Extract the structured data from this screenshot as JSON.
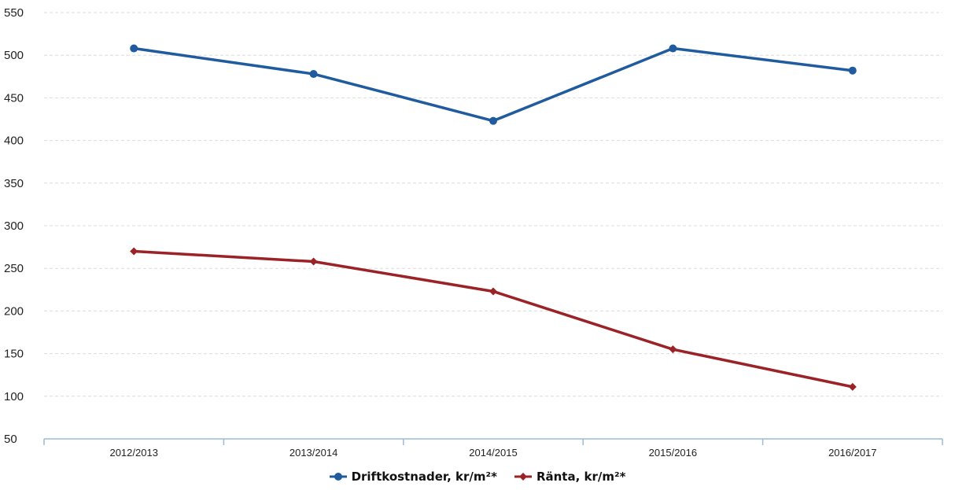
{
  "chart_data": {
    "type": "line",
    "categories": [
      "2012/2013",
      "2013/2014",
      "2014/2015",
      "2015/2016",
      "2016/2017"
    ],
    "series": [
      {
        "name": "Driftkostnader, kr/m²*",
        "values": [
          508,
          478,
          423,
          508,
          482
        ],
        "color": "#1f5b9e",
        "marker": "circle"
      },
      {
        "name": "Ränta, kr/m²*",
        "values": [
          270,
          258,
          223,
          155,
          111
        ],
        "color": "#9b2226",
        "marker": "diamond"
      }
    ],
    "ylim": [
      50,
      550
    ],
    "yticks": [
      50,
      100,
      150,
      200,
      250,
      300,
      350,
      400,
      450,
      500,
      550
    ],
    "grid": true,
    "legend_position": "bottom",
    "title": "",
    "xlabel": "",
    "ylabel": ""
  }
}
